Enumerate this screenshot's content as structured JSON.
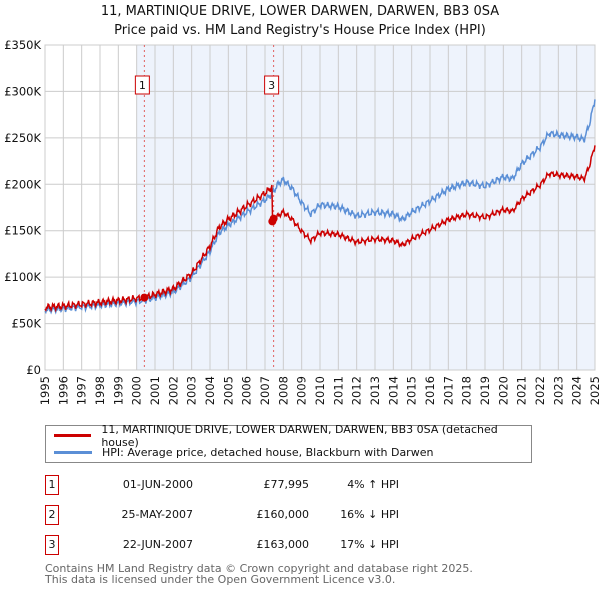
{
  "title": "11, MARTINIQUE DRIVE, LOWER DARWEN, DARWEN, BB3 0SA",
  "subtitle": "Price paid vs. HM Land Registry's House Price Index (HPI)",
  "colors": {
    "price": "#cc0000",
    "hpi": "#5b8fd6",
    "shade": "#eef3fc",
    "grid": "#cccccc"
  },
  "chart_data": {
    "type": "line",
    "title": "11, MARTINIQUE DRIVE, LOWER DARWEN, DARWEN, BB3 0SA",
    "xlim": [
      1995,
      2025
    ],
    "ylim": [
      0,
      350000
    ],
    "x_ticks": [
      "1995",
      "1996",
      "1997",
      "1998",
      "1999",
      "2000",
      "2001",
      "2002",
      "2003",
      "2004",
      "2005",
      "2006",
      "2007",
      "2008",
      "2009",
      "2010",
      "2011",
      "2012",
      "2013",
      "2014",
      "2015",
      "2016",
      "2017",
      "2018",
      "2019",
      "2020",
      "2021",
      "2022",
      "2023",
      "2024",
      "2025"
    ],
    "y_ticks": [
      {
        "v": 0,
        "label": "£0"
      },
      {
        "v": 50000,
        "label": "£50K"
      },
      {
        "v": 100000,
        "label": "£100K"
      },
      {
        "v": 150000,
        "label": "£150K"
      },
      {
        "v": 200000,
        "label": "£200K"
      },
      {
        "v": 250000,
        "label": "£250K"
      },
      {
        "v": 300000,
        "label": "£300K"
      },
      {
        "v": 350000,
        "label": "£350K"
      }
    ],
    "grid": true,
    "series": [
      {
        "name": "HPI: Average price, detached house, Blackburn with Darwen",
        "x": [
          1995,
          1996,
          1997,
          1998,
          1999,
          2000,
          2000.42,
          2001,
          2002,
          2003,
          2004,
          2004.5,
          2005,
          2006,
          2007,
          2007.4,
          2007.7,
          2008,
          2008.5,
          2009,
          2009.5,
          2010,
          2011,
          2012,
          2013,
          2014,
          2014.5,
          2015,
          2016,
          2017,
          2018,
          2019,
          2020,
          2020.5,
          2021,
          2022,
          2022.5,
          2023,
          2024,
          2024.4,
          2024.7,
          2025
        ],
        "y": [
          65000,
          66000,
          68000,
          70000,
          72000,
          74000,
          75000,
          78000,
          84000,
          100000,
          128000,
          148000,
          156000,
          170000,
          183000,
          190000,
          200000,
          205000,
          195000,
          180000,
          168000,
          178000,
          176000,
          166000,
          170000,
          168000,
          162000,
          170000,
          182000,
          195000,
          202000,
          198000,
          208000,
          206000,
          222000,
          240000,
          255000,
          253000,
          251000,
          248000,
          265000,
          292000
        ]
      },
      {
        "name": "11, MARTINIQUE DRIVE, LOWER DARWEN, DARWEN, BB3 0SA (detached house)",
        "derived_from_hpi": true,
        "ratio_before": 1.04,
        "ratio_after": 0.83,
        "change_year": 2007.4
      }
    ],
    "sales": [
      {
        "n": "1",
        "x": 2000.42,
        "y": 77995
      },
      {
        "n": "2",
        "x": 2007.4,
        "y": 160000
      },
      {
        "n": "3",
        "x": 2007.47,
        "y": 163000
      }
    ],
    "marker_lines": [
      {
        "label": "1",
        "x": 2000.42
      },
      {
        "label": "3",
        "x": 2007.47
      }
    ]
  },
  "legend": {
    "price_label": "11, MARTINIQUE DRIVE, LOWER DARWEN, DARWEN, BB3 0SA (detached house)",
    "hpi_label": "HPI: Average price, detached house, Blackburn with Darwen"
  },
  "transactions": [
    {
      "n": "1",
      "date": "01-JUN-2000",
      "price": "£77,995",
      "hpi": "4% ↑ HPI"
    },
    {
      "n": "2",
      "date": "25-MAY-2007",
      "price": "£160,000",
      "hpi": "16% ↓ HPI"
    },
    {
      "n": "3",
      "date": "22-JUN-2007",
      "price": "£163,000",
      "hpi": "17% ↓ HPI"
    }
  ],
  "footer": {
    "line1": "Contains HM Land Registry data © Crown copyright and database right 2025.",
    "line2": "This data is licensed under the Open Government Licence v3.0."
  }
}
